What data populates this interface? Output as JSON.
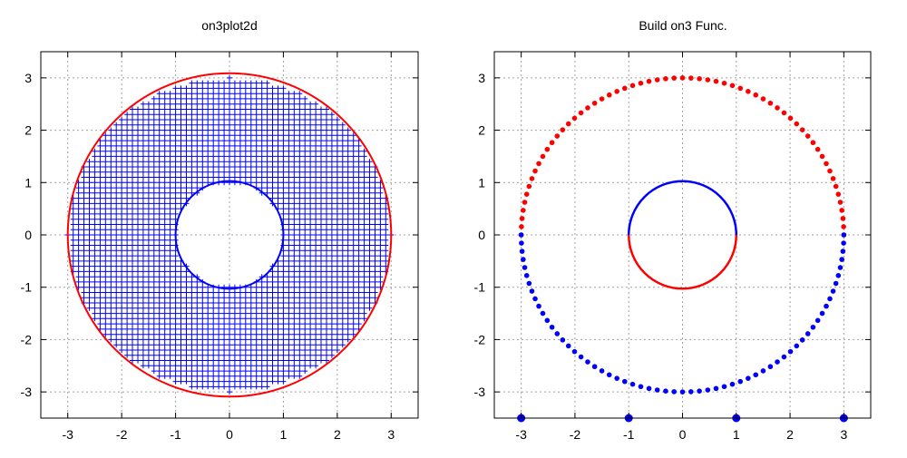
{
  "chart_data": [
    {
      "type": "scatter",
      "title": "on3plot2d",
      "xlabel": "",
      "ylabel": "",
      "xlim": [
        -3.5,
        3.5
      ],
      "ylim": [
        -3.5,
        3.5
      ],
      "xticks": [
        -3,
        -2,
        -1,
        0,
        1,
        2,
        3
      ],
      "yticks": [
        -3,
        -2,
        -1,
        0,
        1,
        2,
        3
      ],
      "tick_labels_x": [
        "-3",
        "-2",
        "-1",
        "0",
        "1",
        "2",
        "3"
      ],
      "tick_labels_y": [
        "-3",
        "-2",
        "-1",
        "0",
        "1",
        "2",
        "3"
      ],
      "grid": true,
      "legend": "none",
      "annulus": {
        "inner_radius": 1,
        "outer_radius": 3,
        "center": [
          0,
          0
        ]
      },
      "series": [
        {
          "kind": "mesh",
          "description": "grid of points filling annulus 1 <= r <= 3, spacing 0.1",
          "spacing": 0.1,
          "color": "#0000ff",
          "marker": "plus"
        },
        {
          "kind": "circle",
          "radius": 1,
          "color": "#0000ff"
        },
        {
          "kind": "circle",
          "radius": 3,
          "color": "#ff0000"
        }
      ]
    },
    {
      "type": "scatter",
      "title": "Build on3 Func.",
      "xlabel": "",
      "ylabel": "",
      "xlim": [
        -3.5,
        3.5
      ],
      "ylim": [
        -3.5,
        3.5
      ],
      "xticks": [
        -3,
        -2,
        -1,
        0,
        1,
        2,
        3
      ],
      "yticks": [
        -3,
        -2,
        -1,
        0,
        1,
        2,
        3
      ],
      "tick_labels_x": [
        "-3",
        "-2",
        "-1",
        "0",
        "1",
        "2",
        "3"
      ],
      "tick_labels_y": [
        "-3",
        "-2",
        "-1",
        "0",
        "1",
        "2",
        "3"
      ],
      "grid": true,
      "legend": "none",
      "series": [
        {
          "kind": "dotted-arc",
          "radius": 3,
          "theta_start_deg": 0,
          "theta_end_deg": 180,
          "n_points": 60,
          "color": "#ff0000"
        },
        {
          "kind": "dotted-arc",
          "radius": 3,
          "theta_start_deg": 180,
          "theta_end_deg": 360,
          "n_points": 60,
          "color": "#0000ff"
        },
        {
          "kind": "arc",
          "radius": 1,
          "theta_start_deg": 0,
          "theta_end_deg": 180,
          "color": "#0000ff"
        },
        {
          "kind": "arc",
          "radius": 1,
          "theta_start_deg": 180,
          "theta_end_deg": 360,
          "color": "#ff0000"
        },
        {
          "kind": "points",
          "x": [
            -3,
            -1,
            1,
            3
          ],
          "y": [
            -3.5,
            -3.5,
            -3.5,
            -3.5
          ],
          "color": "#0000ff",
          "marker": "big-dot"
        }
      ]
    }
  ]
}
